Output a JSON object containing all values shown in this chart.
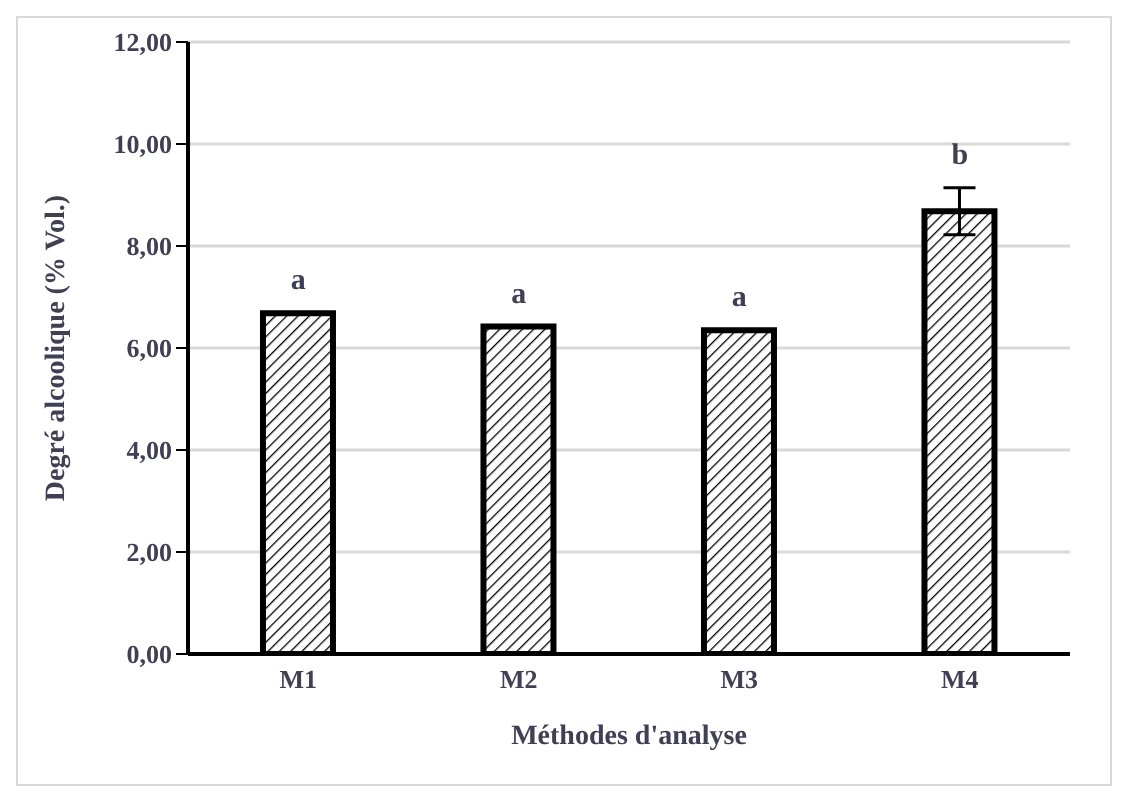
{
  "chart_data": {
    "type": "bar",
    "xlabel": "Méthodes d'analyse",
    "ylabel": "Degré alcoolique (% Vol.)",
    "categories": [
      "M1",
      "M2",
      "M3",
      "M4"
    ],
    "values": [
      6.68,
      6.42,
      6.35,
      8.68
    ],
    "errors": [
      null,
      null,
      null,
      0.46
    ],
    "color": "#000000",
    "ylim": [
      0,
      12
    ],
    "yticks": [
      {
        "value": 0,
        "label": "0,00"
      },
      {
        "value": 2,
        "label": "2,00"
      },
      {
        "value": 4,
        "label": "4,00"
      },
      {
        "value": 6,
        "label": "6,00"
      },
      {
        "value": 8,
        "label": "8,00"
      },
      {
        "value": 10,
        "label": "10,00"
      },
      {
        "value": 12,
        "label": "12,00"
      }
    ],
    "grid": "y",
    "annotations": [
      "a",
      "a",
      "a",
      "b"
    ]
  }
}
